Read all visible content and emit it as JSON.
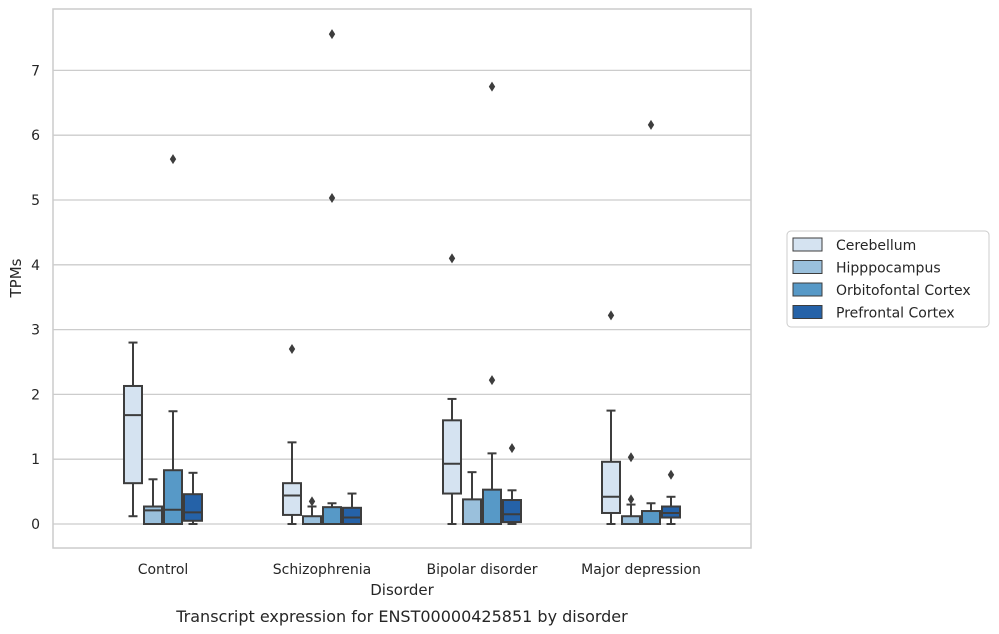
{
  "chart_data": {
    "type": "box",
    "title": "Transcript expression for ENST00000425851 by disorder",
    "xlabel": "Disorder",
    "ylabel": "TPMs",
    "ylim": [
      -0.38,
      7.95
    ],
    "yticks": [
      0,
      1,
      2,
      3,
      4,
      5,
      6,
      7
    ],
    "grid": true,
    "legend_position": "right",
    "categories": [
      "Control",
      "Schizophrenia",
      "Bipolar disorder",
      "Major depression"
    ],
    "series": [
      {
        "name": "Cerebellum",
        "color": "#d5e3f1",
        "boxes": [
          {
            "whislo": 0.12,
            "q1": 0.63,
            "med": 1.68,
            "q3": 2.13,
            "whishi": 2.8,
            "fliers": []
          },
          {
            "whislo": 0.0,
            "q1": 0.14,
            "med": 0.44,
            "q3": 0.63,
            "whishi": 1.26,
            "fliers": [
              2.7
            ]
          },
          {
            "whislo": 0.0,
            "q1": 0.47,
            "med": 0.93,
            "q3": 1.6,
            "whishi": 1.93,
            "fliers": [
              4.1
            ]
          },
          {
            "whislo": 0.0,
            "q1": 0.17,
            "med": 0.42,
            "q3": 0.96,
            "whishi": 1.75,
            "fliers": [
              3.22
            ]
          }
        ]
      },
      {
        "name": "Hipppocampus",
        "color": "#9ac0dc",
        "boxes": [
          {
            "whislo": 0.0,
            "q1": 0.0,
            "med": 0.21,
            "q3": 0.27,
            "whishi": 0.69,
            "fliers": []
          },
          {
            "whislo": 0.0,
            "q1": 0.0,
            "med": 0.0,
            "q3": 0.12,
            "whishi": 0.27,
            "fliers": [
              0.35
            ]
          },
          {
            "whislo": 0.0,
            "q1": 0.0,
            "med": 0.0,
            "q3": 0.38,
            "whishi": 0.8,
            "fliers": []
          },
          {
            "whislo": 0.0,
            "q1": 0.0,
            "med": 0.0,
            "q3": 0.12,
            "whishi": 0.3,
            "fliers": [
              0.38,
              1.03
            ]
          }
        ]
      },
      {
        "name": "Orbitofontal Cortex",
        "color": "#5799c7",
        "boxes": [
          {
            "whislo": 0.0,
            "q1": 0.0,
            "med": 0.22,
            "q3": 0.83,
            "whishi": 1.74,
            "fliers": [
              5.63
            ]
          },
          {
            "whislo": 0.0,
            "q1": 0.0,
            "med": 0.0,
            "q3": 0.26,
            "whishi": 0.32,
            "fliers": [
              5.03,
              7.56
            ]
          },
          {
            "whislo": 0.0,
            "q1": 0.0,
            "med": 0.0,
            "q3": 0.53,
            "whishi": 1.09,
            "fliers": [
              2.22,
              6.75
            ]
          },
          {
            "whislo": 0.0,
            "q1": 0.0,
            "med": 0.0,
            "q3": 0.2,
            "whishi": 0.32,
            "fliers": [
              6.16
            ]
          }
        ]
      },
      {
        "name": "Prefrontal Cortex",
        "color": "#2562a8",
        "boxes": [
          {
            "whislo": 0.0,
            "q1": 0.05,
            "med": 0.18,
            "q3": 0.46,
            "whishi": 0.79,
            "fliers": []
          },
          {
            "whislo": 0.0,
            "q1": 0.0,
            "med": 0.1,
            "q3": 0.25,
            "whishi": 0.47,
            "fliers": []
          },
          {
            "whislo": 0.0,
            "q1": 0.03,
            "med": 0.15,
            "q3": 0.37,
            "whishi": 0.52,
            "fliers": [
              1.17
            ]
          },
          {
            "whislo": 0.0,
            "q1": 0.1,
            "med": 0.17,
            "q3": 0.27,
            "whishi": 0.42,
            "fliers": [
              0.76
            ]
          }
        ]
      }
    ]
  }
}
